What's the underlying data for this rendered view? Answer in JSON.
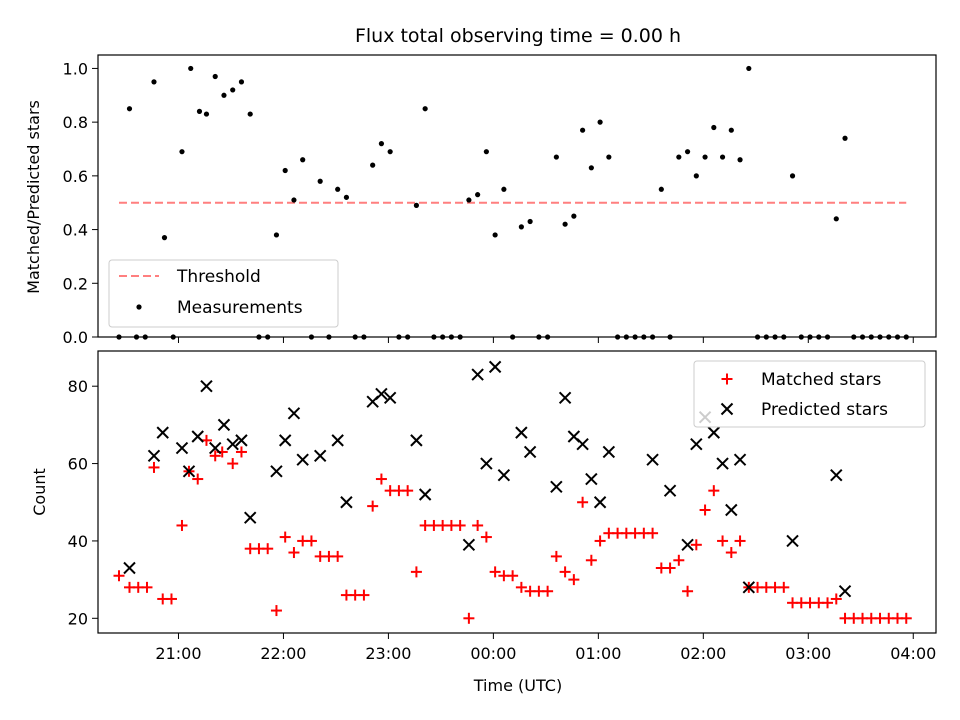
{
  "chart_data": [
    {
      "type": "scatter",
      "title": "Flux total observing time = 0.00 h",
      "xlabel": "",
      "ylabel": "Matched/Predicted stars",
      "xlim": [
        "20:14",
        "04:13"
      ],
      "ylim": [
        0,
        1.05
      ],
      "yticks": [
        0.0,
        0.2,
        0.4,
        0.6,
        0.8,
        1.0
      ],
      "ytick_labels": [
        "0.0",
        "0.2",
        "0.4",
        "0.6",
        "0.8",
        "1.0"
      ],
      "xticks": [
        "21:00",
        "22:00",
        "23:00",
        "00:00",
        "01:00",
        "02:00",
        "03:00",
        "04:00"
      ],
      "xtick_labels": [
        "",
        "",
        "",
        "",
        "",
        "",
        "",
        ""
      ],
      "legend_position": "lower-left",
      "threshold": {
        "name": "Threshold",
        "value": 0.5,
        "x_start": "20:26",
        "x_end": "03:56",
        "color": "#ff7f7f",
        "style": "dashed"
      },
      "series": [
        {
          "name": "Measurements",
          "color": "#000000",
          "marker": "dot",
          "points": [
            [
              "20:26",
              0.0
            ],
            [
              "20:32",
              0.85
            ],
            [
              "20:36",
              0.0
            ],
            [
              "20:41",
              0.0
            ],
            [
              "20:46",
              0.95
            ],
            [
              "20:52",
              0.37
            ],
            [
              "20:57",
              0.0
            ],
            [
              "21:02",
              0.69
            ],
            [
              "21:07",
              1.0
            ],
            [
              "21:12",
              0.84
            ],
            [
              "21:16",
              0.83
            ],
            [
              "21:21",
              0.97
            ],
            [
              "21:26",
              0.9
            ],
            [
              "21:31",
              0.92
            ],
            [
              "21:36",
              0.95
            ],
            [
              "21:41",
              0.83
            ],
            [
              "21:46",
              0.0
            ],
            [
              "21:51",
              0.0
            ],
            [
              "21:56",
              0.38
            ],
            [
              "22:01",
              0.62
            ],
            [
              "22:06",
              0.51
            ],
            [
              "22:11",
              0.66
            ],
            [
              "22:16",
              0.0
            ],
            [
              "22:21",
              0.58
            ],
            [
              "22:26",
              0.0
            ],
            [
              "22:31",
              0.55
            ],
            [
              "22:36",
              0.52
            ],
            [
              "22:41",
              0.0
            ],
            [
              "22:46",
              0.0
            ],
            [
              "22:51",
              0.64
            ],
            [
              "22:56",
              0.72
            ],
            [
              "23:01",
              0.69
            ],
            [
              "23:06",
              0.0
            ],
            [
              "23:11",
              0.0
            ],
            [
              "23:16",
              0.49
            ],
            [
              "23:21",
              0.85
            ],
            [
              "23:26",
              0.0
            ],
            [
              "23:31",
              0.0
            ],
            [
              "23:36",
              0.0
            ],
            [
              "23:41",
              0.0
            ],
            [
              "23:46",
              0.51
            ],
            [
              "23:51",
              0.53
            ],
            [
              "23:56",
              0.69
            ],
            [
              "00:01",
              0.38
            ],
            [
              "00:06",
              0.55
            ],
            [
              "00:11",
              0.0
            ],
            [
              "00:16",
              0.41
            ],
            [
              "00:21",
              0.43
            ],
            [
              "00:26",
              0.0
            ],
            [
              "00:31",
              0.0
            ],
            [
              "00:36",
              0.67
            ],
            [
              "00:41",
              0.42
            ],
            [
              "00:46",
              0.45
            ],
            [
              "00:51",
              0.77
            ],
            [
              "00:56",
              0.63
            ],
            [
              "01:01",
              0.8
            ],
            [
              "01:06",
              0.67
            ],
            [
              "01:11",
              0.0
            ],
            [
              "01:16",
              0.0
            ],
            [
              "01:21",
              0.0
            ],
            [
              "01:26",
              0.0
            ],
            [
              "01:31",
              0.0
            ],
            [
              "01:36",
              0.55
            ],
            [
              "01:41",
              0.0
            ],
            [
              "01:46",
              0.67
            ],
            [
              "01:51",
              0.69
            ],
            [
              "01:56",
              0.6
            ],
            [
              "02:01",
              0.67
            ],
            [
              "02:06",
              0.78
            ],
            [
              "02:11",
              0.67
            ],
            [
              "02:16",
              0.77
            ],
            [
              "02:21",
              0.66
            ],
            [
              "02:26",
              1.0
            ],
            [
              "02:31",
              0.0
            ],
            [
              "02:36",
              0.0
            ],
            [
              "02:41",
              0.0
            ],
            [
              "02:46",
              0.0
            ],
            [
              "02:51",
              0.6
            ],
            [
              "02:56",
              0.0
            ],
            [
              "03:01",
              0.0
            ],
            [
              "03:06",
              0.0
            ],
            [
              "03:11",
              0.0
            ],
            [
              "03:16",
              0.44
            ],
            [
              "03:21",
              0.74
            ],
            [
              "03:26",
              0.0
            ],
            [
              "03:31",
              0.0
            ],
            [
              "03:36",
              0.0
            ],
            [
              "03:41",
              0.0
            ],
            [
              "03:46",
              0.0
            ],
            [
              "03:51",
              0.0
            ],
            [
              "03:56",
              0.0
            ]
          ]
        }
      ]
    },
    {
      "type": "scatter",
      "title": "",
      "xlabel": "Time (UTC)",
      "ylabel": "Count",
      "xlim": [
        "20:14",
        "04:13"
      ],
      "ylim": [
        16.2,
        89.1
      ],
      "yticks": [
        20,
        40,
        60,
        80
      ],
      "ytick_labels": [
        "20",
        "40",
        "60",
        "80"
      ],
      "xticks": [
        "21:00",
        "22:00",
        "23:00",
        "00:00",
        "01:00",
        "02:00",
        "03:00",
        "04:00"
      ],
      "xtick_labels": [
        "21:00",
        "22:00",
        "23:00",
        "00:00",
        "01:00",
        "02:00",
        "03:00",
        "04:00"
      ],
      "legend_position": "top-right",
      "series": [
        {
          "name": "Matched stars",
          "color": "#ff0000",
          "marker": "plus",
          "points": [
            [
              "20:26",
              31
            ],
            [
              "20:32",
              28
            ],
            [
              "20:37",
              28
            ],
            [
              "20:42",
              28
            ],
            [
              "20:46",
              59
            ],
            [
              "20:51",
              25
            ],
            [
              "20:56",
              25
            ],
            [
              "21:02",
              44
            ],
            [
              "21:06",
              58
            ],
            [
              "21:11",
              56
            ],
            [
              "21:16",
              66
            ],
            [
              "21:21",
              62
            ],
            [
              "21:25",
              63
            ],
            [
              "21:31",
              60
            ],
            [
              "21:36",
              63
            ],
            [
              "21:41",
              38
            ],
            [
              "21:46",
              38
            ],
            [
              "21:51",
              38
            ],
            [
              "21:56",
              22
            ],
            [
              "22:01",
              41
            ],
            [
              "22:06",
              37
            ],
            [
              "22:11",
              40
            ],
            [
              "22:16",
              40
            ],
            [
              "22:21",
              36
            ],
            [
              "22:26",
              36
            ],
            [
              "22:31",
              36
            ],
            [
              "22:36",
              26
            ],
            [
              "22:41",
              26
            ],
            [
              "22:46",
              26
            ],
            [
              "22:51",
              49
            ],
            [
              "22:56",
              56
            ],
            [
              "23:01",
              53
            ],
            [
              "23:06",
              53
            ],
            [
              "23:11",
              53
            ],
            [
              "23:16",
              32
            ],
            [
              "23:21",
              44
            ],
            [
              "23:26",
              44
            ],
            [
              "23:31",
              44
            ],
            [
              "23:36",
              44
            ],
            [
              "23:41",
              44
            ],
            [
              "23:46",
              20
            ],
            [
              "23:51",
              44
            ],
            [
              "23:56",
              41
            ],
            [
              "00:01",
              32
            ],
            [
              "00:06",
              31
            ],
            [
              "00:11",
              31
            ],
            [
              "00:16",
              28
            ],
            [
              "00:21",
              27
            ],
            [
              "00:26",
              27
            ],
            [
              "00:31",
              27
            ],
            [
              "00:36",
              36
            ],
            [
              "00:41",
              32
            ],
            [
              "00:46",
              30
            ],
            [
              "00:51",
              50
            ],
            [
              "00:56",
              35
            ],
            [
              "01:01",
              40
            ],
            [
              "01:06",
              42
            ],
            [
              "01:11",
              42
            ],
            [
              "01:16",
              42
            ],
            [
              "01:21",
              42
            ],
            [
              "01:26",
              42
            ],
            [
              "01:31",
              42
            ],
            [
              "01:36",
              33
            ],
            [
              "01:41",
              33
            ],
            [
              "01:46",
              35
            ],
            [
              "01:51",
              27
            ],
            [
              "01:56",
              39
            ],
            [
              "02:01",
              48
            ],
            [
              "02:06",
              53
            ],
            [
              "02:11",
              40
            ],
            [
              "02:16",
              37
            ],
            [
              "02:21",
              40
            ],
            [
              "02:26",
              28
            ],
            [
              "02:31",
              28
            ],
            [
              "02:36",
              28
            ],
            [
              "02:41",
              28
            ],
            [
              "02:46",
              28
            ],
            [
              "02:51",
              24
            ],
            [
              "02:56",
              24
            ],
            [
              "03:01",
              24
            ],
            [
              "03:06",
              24
            ],
            [
              "03:11",
              24
            ],
            [
              "03:16",
              25
            ],
            [
              "03:21",
              20
            ],
            [
              "03:26",
              20
            ],
            [
              "03:31",
              20
            ],
            [
              "03:36",
              20
            ],
            [
              "03:41",
              20
            ],
            [
              "03:46",
              20
            ],
            [
              "03:51",
              20
            ],
            [
              "03:56",
              20
            ]
          ]
        },
        {
          "name": "Predicted stars",
          "color": "#000000",
          "marker": "x",
          "points": [
            [
              "20:32",
              33
            ],
            [
              "20:46",
              62
            ],
            [
              "20:51",
              68
            ],
            [
              "21:02",
              64
            ],
            [
              "21:06",
              58
            ],
            [
              "21:11",
              67
            ],
            [
              "21:16",
              80
            ],
            [
              "21:21",
              64
            ],
            [
              "21:26",
              70
            ],
            [
              "21:31",
              65
            ],
            [
              "21:36",
              66
            ],
            [
              "21:41",
              46
            ],
            [
              "21:56",
              58
            ],
            [
              "22:01",
              66
            ],
            [
              "22:06",
              73
            ],
            [
              "22:11",
              61
            ],
            [
              "22:21",
              62
            ],
            [
              "22:31",
              66
            ],
            [
              "22:36",
              50
            ],
            [
              "22:51",
              76
            ],
            [
              "22:56",
              78
            ],
            [
              "23:01",
              77
            ],
            [
              "23:16",
              66
            ],
            [
              "23:21",
              52
            ],
            [
              "23:46",
              39
            ],
            [
              "23:51",
              83
            ],
            [
              "23:56",
              60
            ],
            [
              "00:01",
              85
            ],
            [
              "00:06",
              57
            ],
            [
              "00:16",
              68
            ],
            [
              "00:21",
              63
            ],
            [
              "00:36",
              54
            ],
            [
              "00:41",
              77
            ],
            [
              "00:46",
              67
            ],
            [
              "00:51",
              65
            ],
            [
              "00:56",
              56
            ],
            [
              "01:01",
              50
            ],
            [
              "01:06",
              63
            ],
            [
              "01:31",
              61
            ],
            [
              "01:41",
              53
            ],
            [
              "01:51",
              39
            ],
            [
              "01:56",
              65
            ],
            [
              "02:01",
              72
            ],
            [
              "02:06",
              68
            ],
            [
              "02:11",
              60
            ],
            [
              "02:16",
              48
            ],
            [
              "02:21",
              61
            ],
            [
              "02:26",
              28
            ],
            [
              "02:51",
              40
            ],
            [
              "03:16",
              57
            ],
            [
              "03:21",
              27
            ]
          ]
        }
      ]
    }
  ]
}
